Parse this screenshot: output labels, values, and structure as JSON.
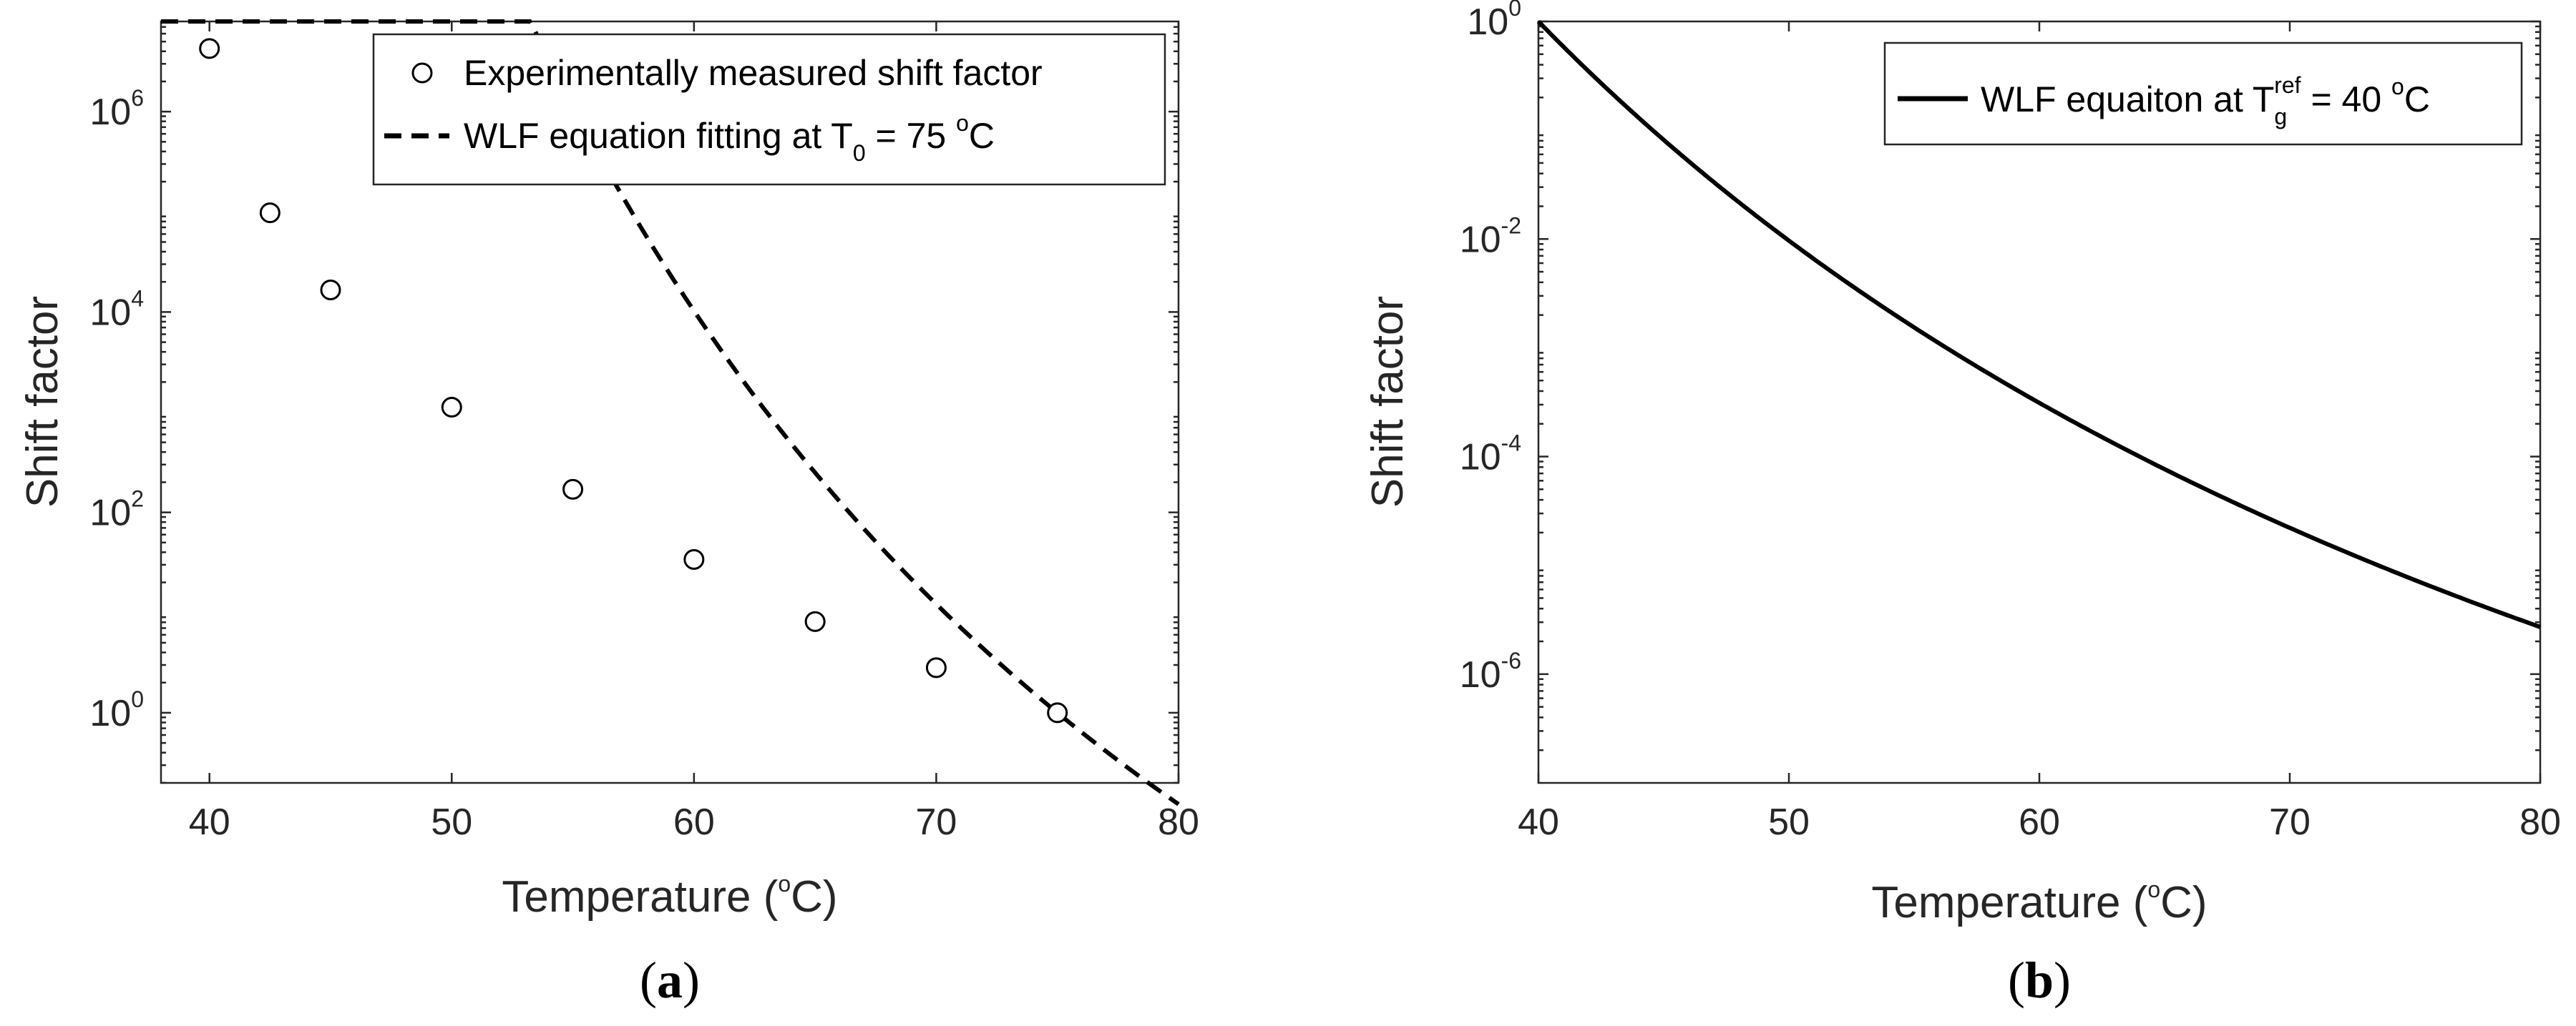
{
  "chart_data": [
    {
      "type": "scatter",
      "panel_label": {
        "open": "(",
        "letter": "a",
        "close": ")"
      },
      "xlabel": {
        "text": "Temperature (",
        "sup": "o",
        "unit": "C)"
      },
      "ylabel": "Shift factor",
      "xlim": [
        38,
        80
      ],
      "ylim_log10": [
        -0.7,
        6.9
      ],
      "yscale": "log",
      "x_ticks": [
        40,
        50,
        60,
        70,
        80
      ],
      "y_ticks": [
        {
          "base": "10",
          "exp": "0",
          "log10": 0
        },
        {
          "base": "10",
          "exp": "2",
          "log10": 2
        },
        {
          "base": "10",
          "exp": "4",
          "log10": 4
        },
        {
          "base": "10",
          "exp": "6",
          "log10": 6
        }
      ],
      "grid": false,
      "legend_position": "top-right",
      "series": [
        {
          "name": "Experimentally measured shift factor",
          "style": "markers-circle",
          "color": "#000000",
          "x": [
            40,
            42.5,
            45,
            50,
            55,
            60,
            65,
            70,
            75
          ],
          "log10_y": [
            6.63,
            4.99,
            4.22,
            3.05,
            2.23,
            1.53,
            0.91,
            0.45,
            0.0
          ]
        },
        {
          "name": "WLF equation fitting at T",
          "legend_sub": "0",
          "legend_rest": " = 75 ",
          "legend_sup": "o",
          "legend_unit": "C",
          "style": "dashed-line",
          "color": "#000000",
          "model": "WLF",
          "C1": 11.5,
          "C2": 58,
          "T_ref": 75,
          "x_range": [
            38,
            80
          ]
        }
      ]
    },
    {
      "type": "line",
      "panel_label": {
        "open": "(",
        "letter": "b",
        "close": ")"
      },
      "xlabel": {
        "text": "Temperature (",
        "sup": "o",
        "unit": "C)"
      },
      "ylabel": "Shift factor",
      "xlim": [
        40,
        80
      ],
      "ylim_log10": [
        -7,
        0
      ],
      "yscale": "log",
      "x_ticks": [
        40,
        50,
        60,
        70,
        80
      ],
      "y_ticks": [
        {
          "base": "10",
          "exp": "0",
          "log10": 0
        },
        {
          "base": "10",
          "exp": "-2",
          "log10": -2
        },
        {
          "base": "10",
          "exp": "-4",
          "log10": -4
        },
        {
          "base": "10",
          "exp": "-6",
          "log10": -6
        }
      ],
      "grid": false,
      "legend_position": "top-right",
      "series": [
        {
          "name": "WLF equaiton at T",
          "legend_sub": "g",
          "legend_sup": "ref",
          "legend_rest": " = 40 ",
          "legend_sup2": "o",
          "legend_unit": "C",
          "style": "solid-line",
          "color": "#000000",
          "model": "WLF",
          "C1": 13.5,
          "C2": 57,
          "T_ref": 40,
          "x_range": [
            40,
            80
          ]
        }
      ]
    }
  ]
}
